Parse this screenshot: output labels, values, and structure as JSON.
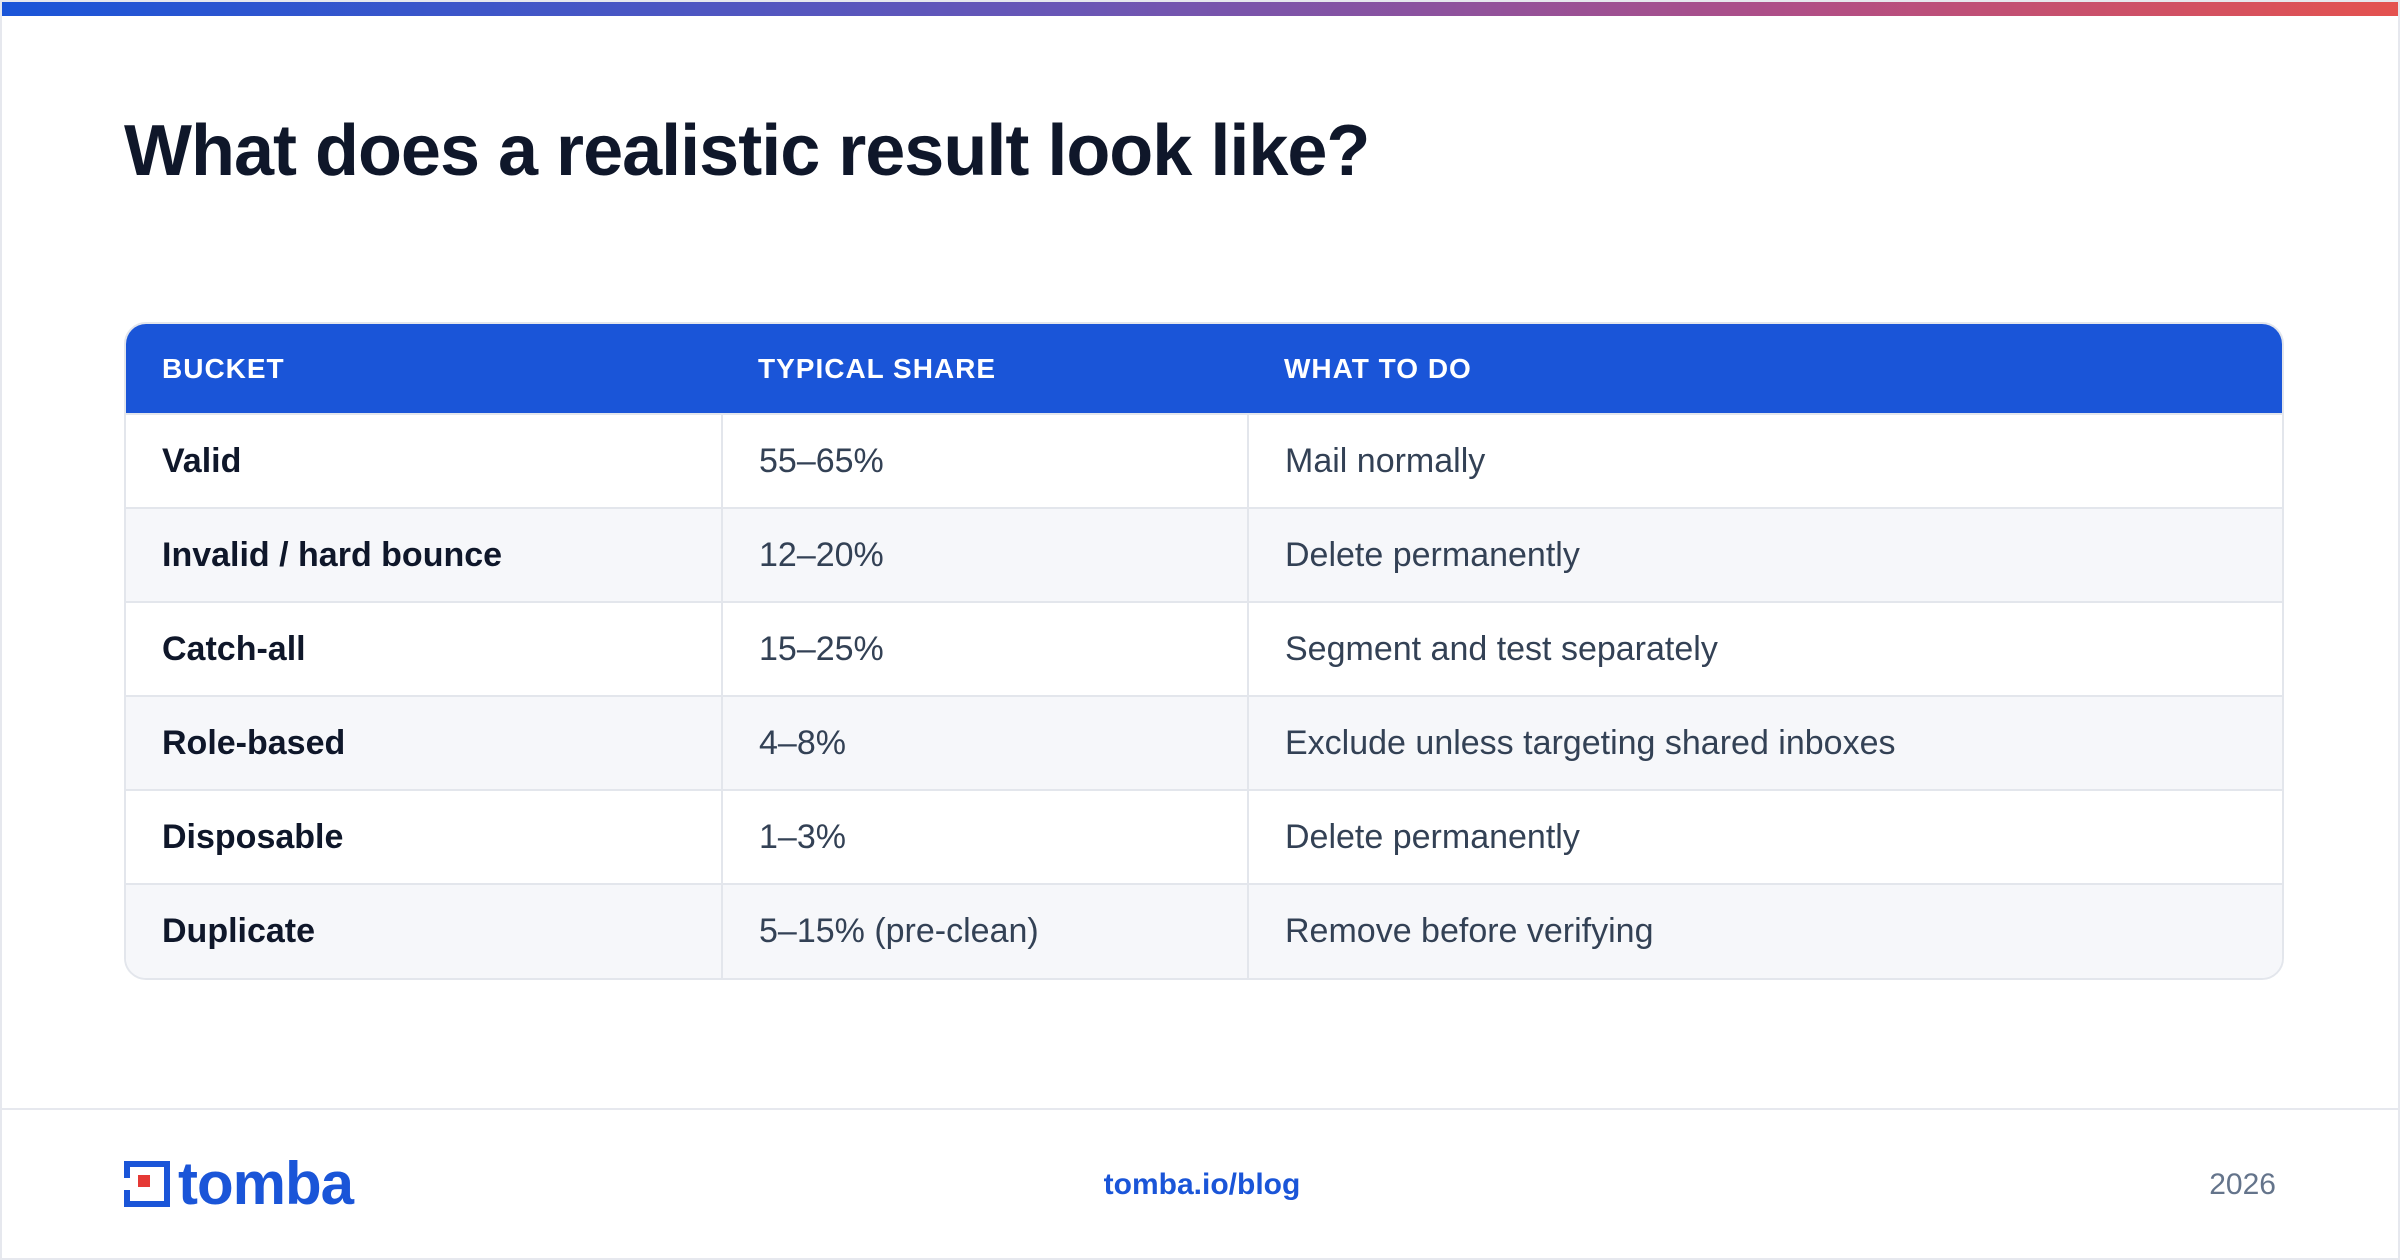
{
  "page": {
    "title": "What does a realistic result look like?"
  },
  "table": {
    "headers": [
      "BUCKET",
      "TYPICAL SHARE",
      "WHAT TO DO"
    ],
    "rows": [
      {
        "bucket": "Valid",
        "share": "55–65%",
        "action": "Mail normally"
      },
      {
        "bucket": "Invalid / hard bounce",
        "share": "12–20%",
        "action": "Delete permanently"
      },
      {
        "bucket": "Catch-all",
        "share": "15–25%",
        "action": "Segment and test separately"
      },
      {
        "bucket": "Role-based",
        "share": "4–8%",
        "action": "Exclude unless targeting shared inboxes"
      },
      {
        "bucket": "Disposable",
        "share": "1–3%",
        "action": "Delete permanently"
      },
      {
        "bucket": "Duplicate",
        "share": "5–15% (pre-clean)",
        "action": "Remove before verifying"
      }
    ]
  },
  "footer": {
    "logo_text": "tomba",
    "url": "tomba.io/blog",
    "year": "2026"
  },
  "colors": {
    "brand_blue": "#1a55d8",
    "logo_red": "#e53935",
    "title_text": "#0f172a"
  }
}
